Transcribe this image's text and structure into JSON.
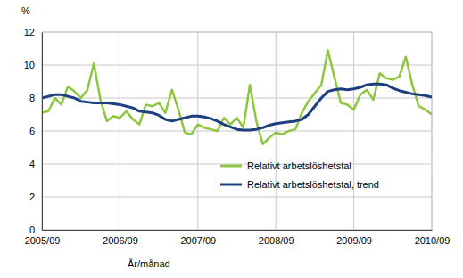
{
  "chart_data": {
    "type": "line",
    "y_label": "%",
    "x_label": "År/månad",
    "categories": [
      "2005/09",
      null,
      null,
      null,
      null,
      null,
      null,
      null,
      null,
      null,
      null,
      null,
      "2006/09",
      null,
      null,
      null,
      null,
      null,
      null,
      null,
      null,
      null,
      null,
      null,
      "2007/09",
      null,
      null,
      null,
      null,
      null,
      null,
      null,
      null,
      null,
      null,
      null,
      "2008/09",
      null,
      null,
      null,
      null,
      null,
      null,
      null,
      null,
      null,
      null,
      null,
      "2009/09",
      null,
      null,
      null,
      null,
      null,
      null,
      null,
      null,
      null,
      null,
      null,
      "2010/09"
    ],
    "series": [
      {
        "name": "Relativt arbetslöshetstal",
        "color": "#8dc63f",
        "values": [
          7.1,
          7.2,
          8.0,
          7.6,
          8.7,
          8.4,
          8.0,
          8.5,
          10.1,
          7.9,
          6.6,
          6.9,
          6.8,
          7.2,
          6.7,
          6.4,
          7.6,
          7.5,
          7.7,
          7.1,
          8.5,
          7.3,
          5.9,
          5.8,
          6.4,
          6.2,
          6.1,
          6.0,
          6.8,
          6.4,
          6.8,
          6.2,
          8.8,
          6.6,
          5.2,
          5.6,
          5.9,
          5.8,
          6.0,
          6.1,
          7.1,
          7.8,
          8.3,
          8.8,
          10.9,
          9.3,
          7.7,
          7.6,
          7.3,
          8.2,
          8.5,
          7.9,
          9.5,
          9.2,
          9.1,
          9.3,
          10.5,
          8.8,
          7.5,
          7.3,
          7.0
        ]
      },
      {
        "name": "Relativt arbetslöshetstal, trend",
        "color": "#1c3f7f",
        "values": [
          8.0,
          8.1,
          8.2,
          8.2,
          8.1,
          8.0,
          7.8,
          7.75,
          7.7,
          7.7,
          7.7,
          7.65,
          7.6,
          7.5,
          7.4,
          7.2,
          7.15,
          7.1,
          6.95,
          6.7,
          6.6,
          6.7,
          6.8,
          6.9,
          6.9,
          6.85,
          6.75,
          6.6,
          6.4,
          6.25,
          6.1,
          6.05,
          6.05,
          6.1,
          6.2,
          6.35,
          6.45,
          6.5,
          6.55,
          6.6,
          6.7,
          7.0,
          7.5,
          8.0,
          8.4,
          8.5,
          8.55,
          8.5,
          8.55,
          8.65,
          8.8,
          8.85,
          8.85,
          8.8,
          8.6,
          8.45,
          8.35,
          8.25,
          8.2,
          8.15,
          8.05
        ]
      }
    ],
    "ylim": [
      0,
      12
    ],
    "yticks": [
      0,
      2,
      4,
      6,
      8,
      10,
      12
    ],
    "grid": true,
    "legend": "lower right"
  }
}
